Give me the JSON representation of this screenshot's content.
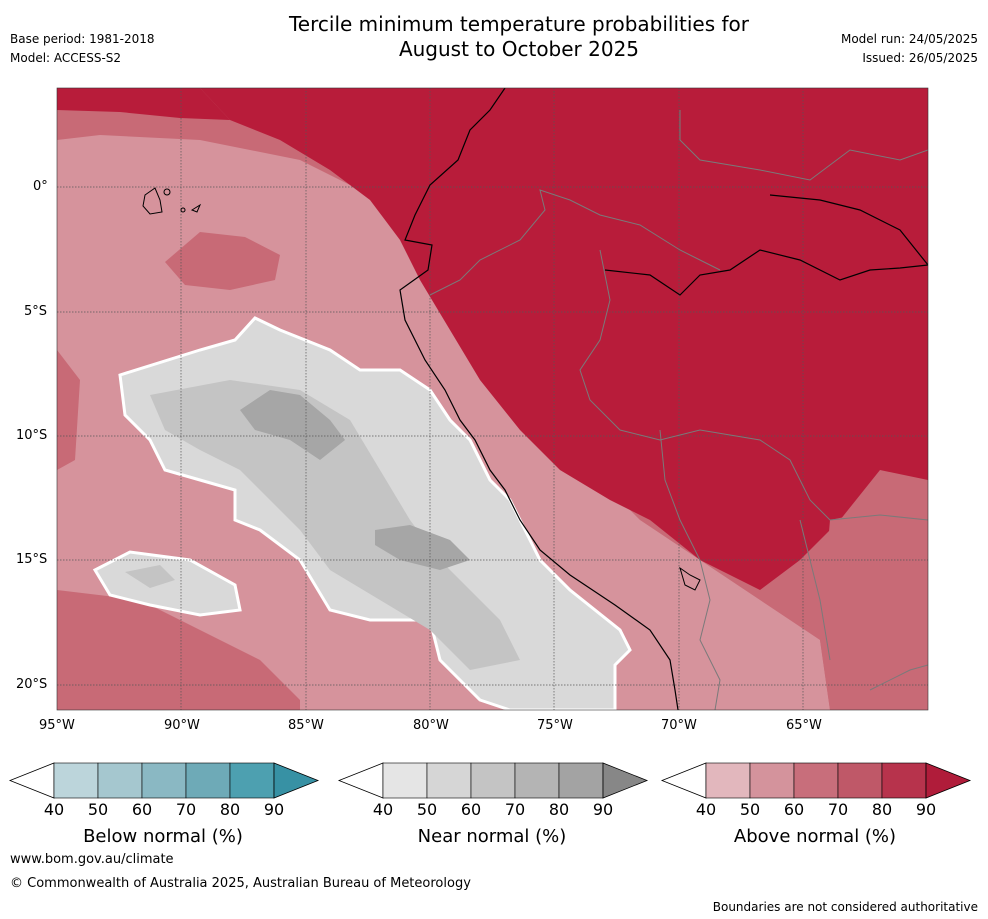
{
  "header": {
    "title_line1": "Tercile minimum temperature probabilities for",
    "title_line2": "August to October 2025",
    "base_period": "Base period: 1981-2018",
    "model": "Model: ACCESS-S2",
    "model_run": "Model run: 24/05/2025",
    "issued": "Issued: 26/05/2025"
  },
  "map": {
    "lat_labels": [
      "0°",
      "5°S",
      "10°S",
      "15°S",
      "20°S"
    ],
    "lon_labels": [
      "95°W",
      "90°W",
      "85°W",
      "80°W",
      "75°W",
      "70°W",
      "65°W"
    ],
    "colors": {
      "ocean_above_light": "#d6939c",
      "above_mid": "#c86a76",
      "above_dark": "#b81c3a",
      "near_light": "#d9d9d9",
      "near_mid": "#c4c4c4",
      "near_dark": "#a6a6a6"
    }
  },
  "colorbars": [
    {
      "label": "Below normal (%)",
      "ticks": [
        "40",
        "50",
        "60",
        "70",
        "80",
        "90"
      ],
      "colors": [
        "#bcd5db",
        "#a5c7cf",
        "#8ab8c3",
        "#6eaab7",
        "#4da0b0",
        "#3791a4"
      ]
    },
    {
      "label": "Near normal (%)",
      "ticks": [
        "40",
        "50",
        "60",
        "70",
        "80",
        "90"
      ],
      "colors": [
        "#e5e5e5",
        "#d6d6d6",
        "#c4c4c4",
        "#b4b4b4",
        "#a3a3a3",
        "#878787"
      ]
    },
    {
      "label": "Above normal (%)",
      "ticks": [
        "40",
        "50",
        "60",
        "70",
        "80",
        "90"
      ],
      "colors": [
        "#e2b7bd",
        "#d4939c",
        "#c86e7b",
        "#bf5868",
        "#b7334c",
        "#b01c3a"
      ]
    }
  ],
  "footer": {
    "website": "www.bom.gov.au/climate",
    "copyright": "© Commonwealth of Australia 2025, Australian Bureau of Meteorology",
    "disclaimer": "Boundaries are not considered authoritative"
  }
}
